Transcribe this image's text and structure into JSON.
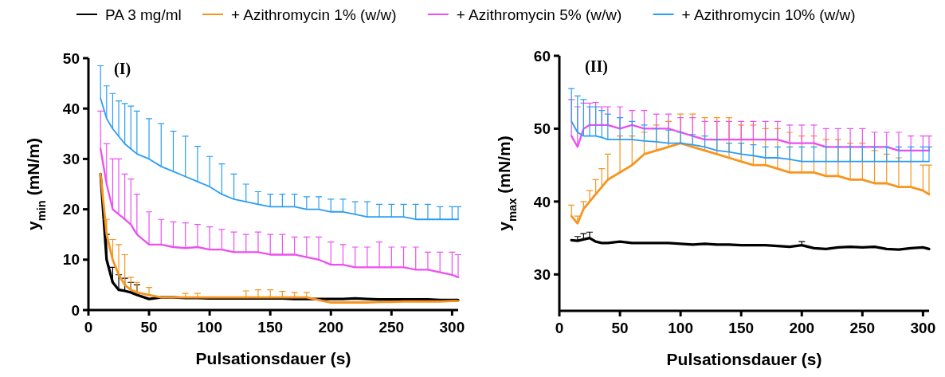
{
  "chart_data": [
    {
      "type": "line",
      "title": "(I)",
      "xlabel": "Pulsationsdauer (s)",
      "ylabel": "y$_{min}$ (mN/m)",
      "legend": "top",
      "xlim": [
        0,
        305
      ],
      "xticks": [
        0,
        50,
        100,
        150,
        200,
        250,
        300
      ],
      "ylim": [
        0,
        50
      ],
      "yticks": [
        0,
        10,
        20,
        30,
        40,
        50
      ],
      "grid": false,
      "marker": "none",
      "line_style": "solid",
      "x": [
        10,
        15,
        20,
        25,
        30,
        35,
        40,
        50,
        60,
        70,
        80,
        90,
        100,
        110,
        120,
        130,
        140,
        150,
        160,
        170,
        180,
        190,
        200,
        210,
        220,
        230,
        240,
        250,
        260,
        270,
        280,
        290,
        300,
        305
      ],
      "series": [
        {
          "name": "PA 3 mg/ml",
          "color": "#000000",
          "values": [
            27,
            10,
            5.5,
            4,
            3.8,
            3.5,
            3,
            2.2,
            2.5,
            2.5,
            2.4,
            2.4,
            2.3,
            2.3,
            2.3,
            2.3,
            2.3,
            2.3,
            2.3,
            2.2,
            2.2,
            2.2,
            2.2,
            2.2,
            2.3,
            2.2,
            2.1,
            2.1,
            2.1,
            2.1,
            2.1,
            2,
            2,
            2
          ],
          "errors": [
            null,
            [
              10,
              15
            ],
            [
              5.5,
              8.5
            ],
            [
              4,
              7
            ],
            [
              3.8,
              6.3
            ],
            [
              3.5,
              5.5
            ],
            [
              3,
              5
            ],
            null,
            null,
            null,
            null,
            null,
            null,
            null,
            null,
            null,
            null,
            null,
            null,
            null,
            null,
            null,
            null,
            null,
            null,
            null,
            null,
            null,
            null,
            null,
            null,
            null,
            null,
            null
          ]
        },
        {
          "name": "+ Azithromycin 1% (w/w)",
          "color": "#f7941d",
          "values": [
            27,
            15,
            10,
            7,
            5,
            4,
            3.5,
            3,
            2.5,
            2.5,
            2.5,
            2.5,
            2.5,
            2.5,
            2.5,
            2.5,
            2.5,
            2.5,
            2.5,
            2.5,
            2.5,
            2,
            1.5,
            1.5,
            1.5,
            1.5,
            1.6,
            1.6,
            1.7,
            1.7,
            1.7,
            1.7,
            1.8,
            1.8
          ],
          "errors": [
            null,
            [
              15,
              18
            ],
            [
              10,
              14
            ],
            [
              7,
              13
            ],
            [
              5,
              11
            ],
            [
              4,
              6.5
            ],
            [
              3.5,
              5.5
            ],
            [
              3,
              4.5
            ],
            null,
            null,
            [
              2.5,
              3.3
            ],
            [
              2.5,
              3.3
            ],
            null,
            null,
            null,
            [
              2.5,
              3.8
            ],
            [
              2.5,
              4
            ],
            [
              2.5,
              4
            ],
            [
              2.5,
              3.7
            ],
            [
              2.5,
              3.5
            ],
            [
              2.5,
              3.5
            ],
            null,
            null,
            null,
            null,
            null,
            null,
            null,
            null,
            null,
            null,
            null,
            null,
            null
          ]
        },
        {
          "name": "+ Azithromycin 5% (w/w)",
          "color": "#ec4ff0",
          "values": [
            32,
            25,
            20,
            19,
            18,
            17,
            15,
            13,
            13,
            12.5,
            12.3,
            12.5,
            12,
            12,
            11.5,
            11.5,
            11.5,
            11,
            11,
            11,
            10.5,
            10,
            9,
            9,
            8.5,
            8.5,
            8.5,
            8.5,
            8.5,
            8,
            8,
            7.5,
            7,
            6.5
          ],
          "errors": [
            [
              32,
              39.5
            ],
            [
              25,
              33
            ],
            [
              20,
              30
            ],
            [
              19,
              30
            ],
            [
              18,
              27
            ],
            [
              17,
              26
            ],
            [
              15,
              23
            ],
            [
              13,
              19.5
            ],
            [
              13,
              18
            ],
            [
              12.5,
              17.5
            ],
            [
              12.3,
              17.3
            ],
            [
              12.5,
              17
            ],
            [
              12,
              16.5
            ],
            [
              12,
              16
            ],
            [
              11.5,
              15.5
            ],
            [
              11.5,
              15
            ],
            [
              11.5,
              15.5
            ],
            [
              11,
              15
            ],
            [
              11,
              15
            ],
            [
              11,
              14.5
            ],
            [
              10.5,
              14.5
            ],
            [
              10,
              14.5
            ],
            [
              9,
              13.5
            ],
            [
              9,
              13
            ],
            [
              8.5,
              12.5
            ],
            [
              8.5,
              12.5
            ],
            [
              8.5,
              13.5
            ],
            [
              8.5,
              12.5
            ],
            [
              8.5,
              12.5
            ],
            [
              8,
              12.5
            ],
            [
              8,
              11.5
            ],
            [
              7.5,
              11.5
            ],
            [
              7,
              11.5
            ],
            [
              6.5,
              11
            ]
          ]
        },
        {
          "name": "+ Azithromycin 10% (w/w)",
          "color": "#2a9df4",
          "values": [
            42,
            38,
            36,
            34.5,
            33,
            32,
            31,
            30,
            28.5,
            27.5,
            26.5,
            25.5,
            24.5,
            23,
            22,
            21.5,
            21,
            20.5,
            20.5,
            20.5,
            20,
            20,
            19.5,
            19.5,
            19,
            18.5,
            18.5,
            18.5,
            18.5,
            18,
            18,
            18,
            18,
            18
          ],
          "errors": [
            [
              42,
              48.5
            ],
            [
              38,
              44.5
            ],
            [
              36,
              43
            ],
            [
              34.5,
              41.5
            ],
            [
              33,
              41
            ],
            [
              32,
              40.5
            ],
            [
              31,
              39.5
            ],
            [
              30,
              38
            ],
            [
              28.5,
              37
            ],
            [
              27.5,
              35.5
            ],
            [
              26.5,
              34.5
            ],
            [
              25.5,
              32.5
            ],
            [
              24.5,
              30.5
            ],
            [
              23,
              29
            ],
            [
              22,
              27
            ],
            [
              21.5,
              25
            ],
            [
              21,
              23.5
            ],
            [
              20.5,
              23
            ],
            [
              20.5,
              23
            ],
            [
              20.5,
              23
            ],
            [
              20,
              22.5
            ],
            [
              20,
              22.5
            ],
            [
              19.5,
              22
            ],
            [
              19.5,
              22
            ],
            [
              19,
              21.5
            ],
            [
              18.5,
              21.5
            ],
            [
              18.5,
              21
            ],
            [
              18.5,
              21
            ],
            [
              18.5,
              21
            ],
            [
              18,
              21
            ],
            [
              18,
              21
            ],
            [
              18,
              20.5
            ],
            [
              18,
              20.5
            ],
            [
              18,
              20.5
            ]
          ]
        }
      ]
    },
    {
      "type": "line",
      "title": "(II)",
      "xlabel": "Pulsationsdauer (s)",
      "ylabel": "y$_{max}$ (mN/m)",
      "xlim": [
        0,
        305
      ],
      "xticks": [
        0,
        50,
        100,
        150,
        200,
        250,
        300
      ],
      "ylim": [
        25,
        60
      ],
      "yticks": [
        30,
        40,
        50,
        60
      ],
      "grid": false,
      "marker": "none",
      "line_style": "solid",
      "x": [
        10,
        15,
        20,
        25,
        30,
        35,
        40,
        50,
        60,
        70,
        80,
        90,
        100,
        110,
        120,
        130,
        140,
        150,
        160,
        170,
        180,
        190,
        200,
        210,
        220,
        230,
        240,
        250,
        260,
        270,
        280,
        290,
        300,
        305
      ],
      "series": [
        {
          "color": "#000000",
          "values": [
            34.7,
            34.6,
            34.8,
            35,
            34.5,
            34.3,
            34.3,
            34.5,
            34.3,
            34.3,
            34.3,
            34.3,
            34.2,
            34.1,
            34.2,
            34.1,
            34.1,
            34,
            34,
            34,
            33.9,
            33.8,
            34,
            33.6,
            33.5,
            33.7,
            33.8,
            33.7,
            33.8,
            33.5,
            33.4,
            33.6,
            33.7,
            33.5
          ],
          "errors": [
            null,
            [
              34.6,
              35.2
            ],
            [
              34.8,
              35.6
            ],
            [
              35,
              35.8
            ],
            null,
            null,
            null,
            null,
            null,
            null,
            null,
            null,
            null,
            null,
            null,
            null,
            null,
            null,
            null,
            null,
            null,
            null,
            [
              34,
              34.5
            ],
            null,
            null,
            null,
            null,
            null,
            null,
            null,
            null,
            null,
            null,
            null
          ]
        },
        {
          "color": "#f7941d",
          "values": [
            38,
            37,
            39,
            40,
            41,
            42,
            43,
            44,
            45,
            46.5,
            47,
            47.5,
            48,
            47.5,
            47,
            46.5,
            46,
            45.5,
            45,
            45,
            44.5,
            44,
            44,
            44,
            43.5,
            43.5,
            43,
            43,
            42.5,
            42.5,
            42,
            42,
            41.5,
            41
          ],
          "errors": [
            [
              38,
              39.5
            ],
            [
              37,
              38
            ],
            [
              39,
              40
            ],
            [
              40,
              41.5
            ],
            [
              41,
              43
            ],
            [
              42,
              44.5
            ],
            [
              43,
              46.5
            ],
            [
              44,
              49
            ],
            [
              45,
              49
            ],
            [
              46.5,
              49.5
            ],
            [
              47,
              50.5
            ],
            [
              47.5,
              51
            ],
            [
              48,
              52
            ],
            [
              47.5,
              52
            ],
            [
              47,
              51.5
            ],
            [
              46.5,
              51.5
            ],
            [
              46,
              51.5
            ],
            [
              45.5,
              50.5
            ],
            [
              45,
              50.5
            ],
            [
              45,
              50
            ],
            [
              44.5,
              50
            ],
            [
              44,
              49.5
            ],
            [
              44,
              49
            ],
            [
              44,
              49
            ],
            [
              43.5,
              48.5
            ],
            [
              43.5,
              48.5
            ],
            [
              43,
              48
            ],
            [
              43,
              48
            ],
            [
              42.5,
              47
            ],
            [
              42.5,
              46.5
            ],
            [
              42,
              46
            ],
            [
              42,
              45.5
            ],
            [
              41.5,
              45
            ],
            [
              41,
              45
            ]
          ]
        },
        {
          "color": "#ec4ff0",
          "values": [
            49,
            47.5,
            50,
            50.5,
            50.5,
            50.5,
            50.5,
            50,
            50.5,
            50,
            50,
            50,
            49.5,
            49,
            48.5,
            48.5,
            48.5,
            48.5,
            48.5,
            48.5,
            48.5,
            48,
            48,
            48,
            47.5,
            47.5,
            47.5,
            47.5,
            47.5,
            47.5,
            47,
            47,
            47,
            47
          ],
          "errors": [
            [
              49,
              54
            ],
            [
              47.5,
              53
            ],
            [
              50,
              53.5
            ],
            [
              50.5,
              53.5
            ],
            [
              50.5,
              53.6
            ],
            [
              50.5,
              53
            ],
            [
              50.5,
              53
            ],
            [
              50,
              53
            ],
            [
              50.5,
              52.5
            ],
            [
              50,
              52.5
            ],
            [
              50,
              52
            ],
            [
              50,
              52
            ],
            [
              49.5,
              51.5
            ],
            [
              49,
              51.5
            ],
            [
              48.5,
              51
            ],
            [
              48.5,
              51
            ],
            [
              48.5,
              51
            ],
            [
              48.5,
              51
            ],
            [
              48.5,
              51
            ],
            [
              48.5,
              51
            ],
            [
              48.5,
              51
            ],
            [
              48,
              50.5
            ],
            [
              48,
              50.5
            ],
            [
              48,
              50.5
            ],
            [
              47.5,
              50
            ],
            [
              47.5,
              50
            ],
            [
              47.5,
              50
            ],
            [
              47.5,
              50
            ],
            [
              47.5,
              49.5
            ],
            [
              47.5,
              49.5
            ],
            [
              47,
              49.5
            ],
            [
              47,
              49
            ],
            [
              47,
              49
            ],
            [
              47,
              49
            ]
          ]
        },
        {
          "color": "#2a9df4",
          "values": [
            51,
            49.5,
            49,
            49,
            49,
            48.8,
            48.5,
            48.5,
            48.5,
            48.3,
            48.2,
            48,
            48,
            47.8,
            47.5,
            47,
            46.8,
            46.5,
            46.3,
            46,
            46,
            45.8,
            45.5,
            45.5,
            45.5,
            45.5,
            45.5,
            45.5,
            45.5,
            45.5,
            45.5,
            45.5,
            45.5,
            45.5
          ],
          "errors": [
            [
              51,
              55.5
            ],
            [
              49.5,
              54.5
            ],
            [
              49,
              54
            ],
            [
              49,
              53
            ],
            [
              49,
              53
            ],
            [
              48.8,
              52.5
            ],
            [
              48.5,
              52
            ],
            [
              48.5,
              51.5
            ],
            [
              48.5,
              51
            ],
            [
              48.3,
              50.5
            ],
            [
              48.2,
              50
            ],
            [
              48,
              49.8
            ],
            [
              48,
              49.5
            ],
            [
              47.8,
              49.2
            ],
            [
              47.5,
              49
            ],
            [
              47,
              48.5
            ],
            [
              46.8,
              48
            ],
            [
              46.5,
              48
            ],
            [
              46.3,
              47.8
            ],
            [
              46,
              47.5
            ],
            [
              46,
              47.5
            ],
            [
              45.8,
              47.5
            ],
            [
              45.5,
              47.5
            ],
            [
              45.5,
              47.5
            ],
            [
              45.5,
              47.5
            ],
            [
              45.5,
              47.5
            ],
            [
              45.5,
              47.5
            ],
            [
              45.5,
              47.5
            ],
            [
              45.5,
              47.5
            ],
            [
              45.5,
              47.5
            ],
            [
              45.5,
              47.5
            ],
            [
              45.5,
              47.5
            ],
            [
              45.5,
              47.5
            ],
            [
              45.5,
              47.5
            ]
          ]
        }
      ]
    }
  ]
}
